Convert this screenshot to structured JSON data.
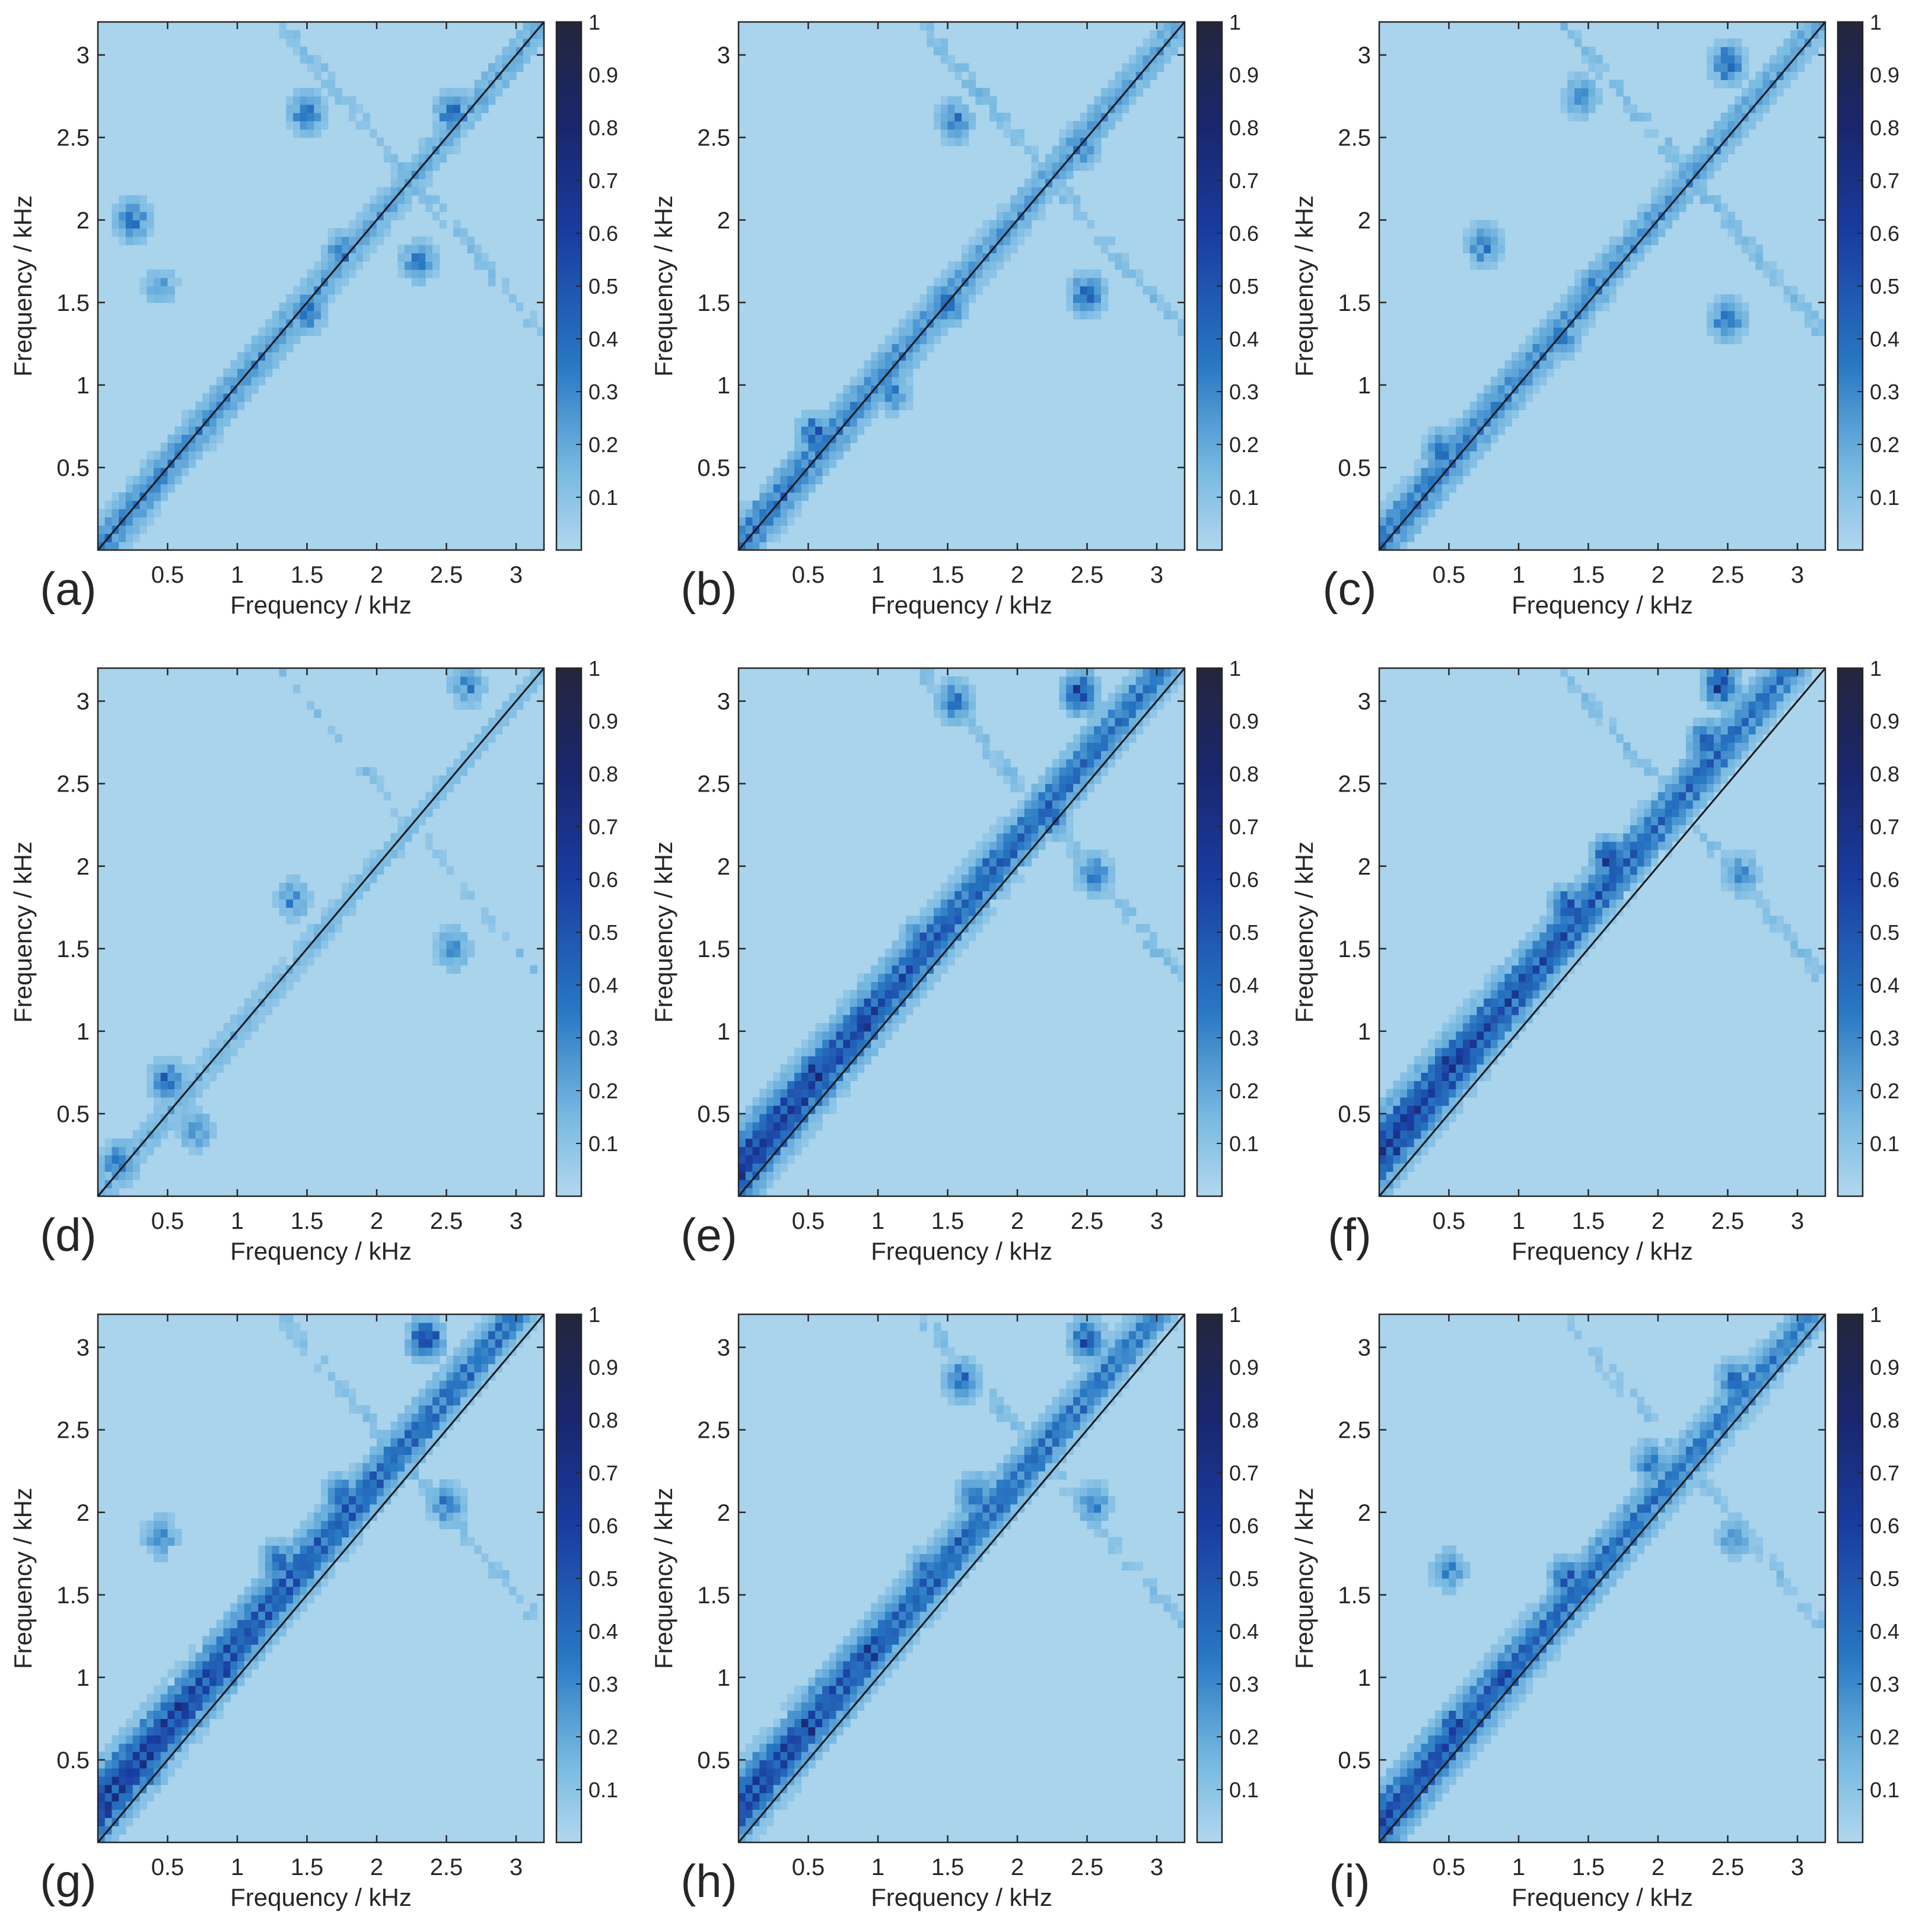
{
  "chart_data": [
    {
      "type": "heatmap",
      "panel_label": "(a)",
      "xlabel": "Frequency / kHz",
      "ylabel": "Frequency / kHz",
      "xlim": [
        0,
        3.2
      ],
      "ylim": [
        0,
        3.2
      ],
      "xticks": [
        "0.5",
        "1",
        "1.5",
        "2",
        "2.5",
        "3"
      ],
      "yticks": [
        "0.5",
        "1",
        "1.5",
        "2",
        "2.5",
        "3"
      ],
      "colorbar": {
        "range": [
          0,
          1
        ],
        "ticks": [
          "0.1",
          "0.2",
          "0.3",
          "0.4",
          "0.5",
          "0.6",
          "0.7",
          "0.8",
          "0.9",
          "1"
        ]
      },
      "diagonal_line": true,
      "band_offset": 0.0,
      "band_strength": 0.45,
      "cross_strength": 0.35,
      "blobs": [
        [
          0.75,
          0.75,
          0.4
        ],
        [
          2.55,
          2.65,
          0.55
        ],
        [
          1.5,
          2.65,
          0.5
        ],
        [
          1.5,
          1.45,
          0.5
        ],
        [
          1.75,
          1.8,
          0.45
        ],
        [
          0.25,
          2.0,
          0.5
        ],
        [
          2.3,
          1.75,
          0.45
        ],
        [
          0.45,
          1.6,
          0.3
        ]
      ]
    },
    {
      "type": "heatmap",
      "panel_label": "(b)",
      "xlabel": "Frequency / kHz",
      "ylabel": "Frequency / kHz",
      "xlim": [
        0,
        3.2
      ],
      "ylim": [
        0,
        3.2
      ],
      "xticks": [
        "0.5",
        "1",
        "1.5",
        "2",
        "2.5",
        "3"
      ],
      "yticks": [
        "0.5",
        "1",
        "1.5",
        "2",
        "2.5",
        "3"
      ],
      "colorbar": {
        "range": [
          0,
          1
        ],
        "ticks": [
          "0.1",
          "0.2",
          "0.3",
          "0.4",
          "0.5",
          "0.6",
          "0.7",
          "0.8",
          "0.9",
          "1"
        ]
      },
      "diagonal_line": true,
      "band_offset": 0.02,
      "band_strength": 0.5,
      "cross_strength": 0.4,
      "blobs": [
        [
          0.55,
          0.7,
          0.6
        ],
        [
          1.5,
          1.5,
          0.6
        ],
        [
          2.5,
          1.55,
          0.55
        ],
        [
          1.55,
          2.6,
          0.45
        ],
        [
          2.45,
          2.45,
          0.5
        ],
        [
          0.25,
          0.25,
          0.45
        ],
        [
          1.1,
          0.95,
          0.4
        ]
      ]
    },
    {
      "type": "heatmap",
      "panel_label": "(c)",
      "xlabel": "Frequency / kHz",
      "ylabel": "Frequency / kHz",
      "xlim": [
        0,
        3.2
      ],
      "ylim": [
        0,
        3.2
      ],
      "xticks": [
        "0.5",
        "1",
        "1.5",
        "2",
        "2.5",
        "3"
      ],
      "yticks": [
        "0.5",
        "1",
        "1.5",
        "2",
        "2.5",
        "3"
      ],
      "colorbar": {
        "range": [
          0,
          1
        ],
        "ticks": [
          "0.1",
          "0.2",
          "0.3",
          "0.4",
          "0.5",
          "0.6",
          "0.7",
          "0.8",
          "0.9",
          "1"
        ]
      },
      "diagonal_line": true,
      "band_offset": 0.03,
      "band_strength": 0.5,
      "cross_strength": 0.4,
      "blobs": [
        [
          0.45,
          0.6,
          0.5
        ],
        [
          2.5,
          2.95,
          0.55
        ],
        [
          2.5,
          1.4,
          0.5
        ],
        [
          1.3,
          1.3,
          0.5
        ],
        [
          0.75,
          1.85,
          0.45
        ],
        [
          1.55,
          1.6,
          0.45
        ],
        [
          1.45,
          2.75,
          0.4
        ]
      ]
    },
    {
      "type": "heatmap",
      "panel_label": "(d)",
      "xlabel": "Frequency / kHz",
      "ylabel": "Frequency / kHz",
      "xlim": [
        0,
        3.2
      ],
      "ylim": [
        0,
        3.2
      ],
      "xticks": [
        "0.5",
        "1",
        "1.5",
        "2",
        "2.5",
        "3"
      ],
      "yticks": [
        "0.5",
        "1",
        "1.5",
        "2",
        "2.5",
        "3"
      ],
      "colorbar": {
        "range": [
          0,
          1
        ],
        "ticks": [
          "0.1",
          "0.2",
          "0.3",
          "0.4",
          "0.5",
          "0.6",
          "0.7",
          "0.8",
          "0.9",
          "1"
        ]
      },
      "diagonal_line": true,
      "band_offset": 0.0,
      "band_strength": 0.25,
      "cross_strength": 0.25,
      "blobs": [
        [
          0.5,
          0.7,
          0.55
        ],
        [
          0.15,
          0.2,
          0.5
        ],
        [
          2.65,
          3.1,
          0.4
        ],
        [
          2.55,
          1.5,
          0.4
        ],
        [
          0.7,
          0.4,
          0.35
        ],
        [
          1.4,
          1.8,
          0.35
        ]
      ]
    },
    {
      "type": "heatmap",
      "panel_label": "(e)",
      "xlabel": "Frequency / kHz",
      "ylabel": "Frequency / kHz",
      "xlim": [
        0,
        3.2
      ],
      "ylim": [
        0,
        3.2
      ],
      "xticks": [
        "0.5",
        "1",
        "1.5",
        "2",
        "2.5",
        "3"
      ],
      "yticks": [
        "0.5",
        "1",
        "1.5",
        "2",
        "2.5",
        "3"
      ],
      "colorbar": {
        "range": [
          0,
          1
        ],
        "ticks": [
          "0.1",
          "0.2",
          "0.3",
          "0.4",
          "0.5",
          "0.6",
          "0.7",
          "0.8",
          "0.9",
          "1"
        ]
      },
      "diagonal_line": true,
      "band_offset": 0.15,
      "band_strength": 0.8,
      "cross_strength": 0.4,
      "blobs": [
        [
          0.55,
          0.75,
          0.9
        ],
        [
          0.9,
          1.05,
          0.85
        ],
        [
          0.35,
          0.5,
          0.6
        ],
        [
          2.45,
          3.05,
          0.75
        ],
        [
          1.55,
          3.0,
          0.5
        ],
        [
          2.25,
          2.3,
          0.55
        ],
        [
          1.3,
          1.55,
          0.55
        ],
        [
          2.55,
          1.95,
          0.45
        ]
      ]
    },
    {
      "type": "heatmap",
      "panel_label": "(f)",
      "xlabel": "Frequency / kHz",
      "ylabel": "Frequency / kHz",
      "xlim": [
        0,
        3.2
      ],
      "ylim": [
        0,
        3.2
      ],
      "xticks": [
        "0.5",
        "1",
        "1.5",
        "2",
        "2.5",
        "3"
      ],
      "yticks": [
        "0.5",
        "1",
        "1.5",
        "2",
        "2.5",
        "3"
      ],
      "colorbar": {
        "range": [
          0,
          1
        ],
        "ticks": [
          "0.1",
          "0.2",
          "0.3",
          "0.4",
          "0.5",
          "0.6",
          "0.7",
          "0.8",
          "0.9",
          "1"
        ]
      },
      "diagonal_line": true,
      "band_offset": 0.25,
      "band_strength": 0.8,
      "cross_strength": 0.35,
      "blobs": [
        [
          0.5,
          0.8,
          0.9
        ],
        [
          1.65,
          2.05,
          0.75
        ],
        [
          1.35,
          1.75,
          0.7
        ],
        [
          2.45,
          3.1,
          0.75
        ],
        [
          2.35,
          2.75,
          0.65
        ],
        [
          0.95,
          1.25,
          0.65
        ],
        [
          0.3,
          0.55,
          0.6
        ],
        [
          2.6,
          1.95,
          0.4
        ]
      ]
    },
    {
      "type": "heatmap",
      "panel_label": "(g)",
      "xlabel": "Frequency / kHz",
      "ylabel": "Frequency / kHz",
      "xlim": [
        0,
        3.2
      ],
      "ylim": [
        0,
        3.2
      ],
      "xticks": [
        "0.5",
        "1",
        "1.5",
        "2",
        "2.5",
        "3"
      ],
      "yticks": [
        "0.5",
        "1",
        "1.5",
        "2",
        "2.5",
        "3"
      ],
      "colorbar": {
        "range": [
          0,
          1
        ],
        "ticks": [
          "0.1",
          "0.2",
          "0.3",
          "0.4",
          "0.5",
          "0.6",
          "0.7",
          "0.8",
          "0.9",
          "1"
        ]
      },
      "diagonal_line": true,
      "band_offset": 0.2,
      "band_strength": 0.8,
      "cross_strength": 0.35,
      "blobs": [
        [
          0.6,
          0.8,
          0.95
        ],
        [
          0.9,
          1.05,
          0.75
        ],
        [
          0.35,
          0.45,
          0.65
        ],
        [
          2.35,
          3.05,
          0.75
        ],
        [
          1.75,
          2.1,
          0.6
        ],
        [
          2.5,
          2.05,
          0.45
        ],
        [
          0.45,
          1.85,
          0.4
        ],
        [
          1.3,
          1.7,
          0.55
        ]
      ]
    },
    {
      "type": "heatmap",
      "panel_label": "(h)",
      "xlabel": "Frequency / kHz",
      "ylabel": "Frequency / kHz",
      "xlim": [
        0,
        3.2
      ],
      "ylim": [
        0,
        3.2
      ],
      "xticks": [
        "0.5",
        "1",
        "1.5",
        "2",
        "2.5",
        "3"
      ],
      "yticks": [
        "0.5",
        "1",
        "1.5",
        "2",
        "2.5",
        "3"
      ],
      "colorbar": {
        "range": [
          0,
          1
        ],
        "ticks": [
          "0.1",
          "0.2",
          "0.3",
          "0.4",
          "0.5",
          "0.6",
          "0.7",
          "0.8",
          "0.9",
          "1"
        ]
      },
      "diagonal_line": true,
      "band_offset": 0.2,
      "band_strength": 0.75,
      "cross_strength": 0.35,
      "blobs": [
        [
          0.5,
          0.7,
          0.85
        ],
        [
          0.95,
          1.15,
          0.8
        ],
        [
          0.3,
          0.45,
          0.6
        ],
        [
          2.5,
          3.05,
          0.65
        ],
        [
          1.6,
          2.8,
          0.5
        ],
        [
          1.35,
          1.65,
          0.55
        ],
        [
          1.7,
          2.1,
          0.5
        ],
        [
          2.55,
          2.05,
          0.4
        ]
      ]
    },
    {
      "type": "heatmap",
      "panel_label": "(i)",
      "xlabel": "Frequency / kHz",
      "ylabel": "Frequency / kHz",
      "xlim": [
        0,
        3.2
      ],
      "ylim": [
        0,
        3.2
      ],
      "xticks": [
        "0.5",
        "1",
        "1.5",
        "2",
        "2.5",
        "3"
      ],
      "yticks": [
        "0.5",
        "1",
        "1.5",
        "2",
        "2.5",
        "3"
      ],
      "colorbar": {
        "range": [
          0,
          1
        ],
        "ticks": [
          "0.1",
          "0.2",
          "0.3",
          "0.4",
          "0.5",
          "0.6",
          "0.7",
          "0.8",
          "0.9",
          "1"
        ]
      },
      "diagonal_line": true,
      "band_offset": 0.1,
      "band_strength": 0.7,
      "cross_strength": 0.3,
      "blobs": [
        [
          0.55,
          0.7,
          0.8
        ],
        [
          0.9,
          1.0,
          0.8
        ],
        [
          0.2,
          0.25,
          0.7
        ],
        [
          1.35,
          1.6,
          0.6
        ],
        [
          2.55,
          2.8,
          0.55
        ],
        [
          1.95,
          2.3,
          0.45
        ],
        [
          0.5,
          1.65,
          0.4
        ],
        [
          2.55,
          1.85,
          0.35
        ]
      ]
    }
  ]
}
